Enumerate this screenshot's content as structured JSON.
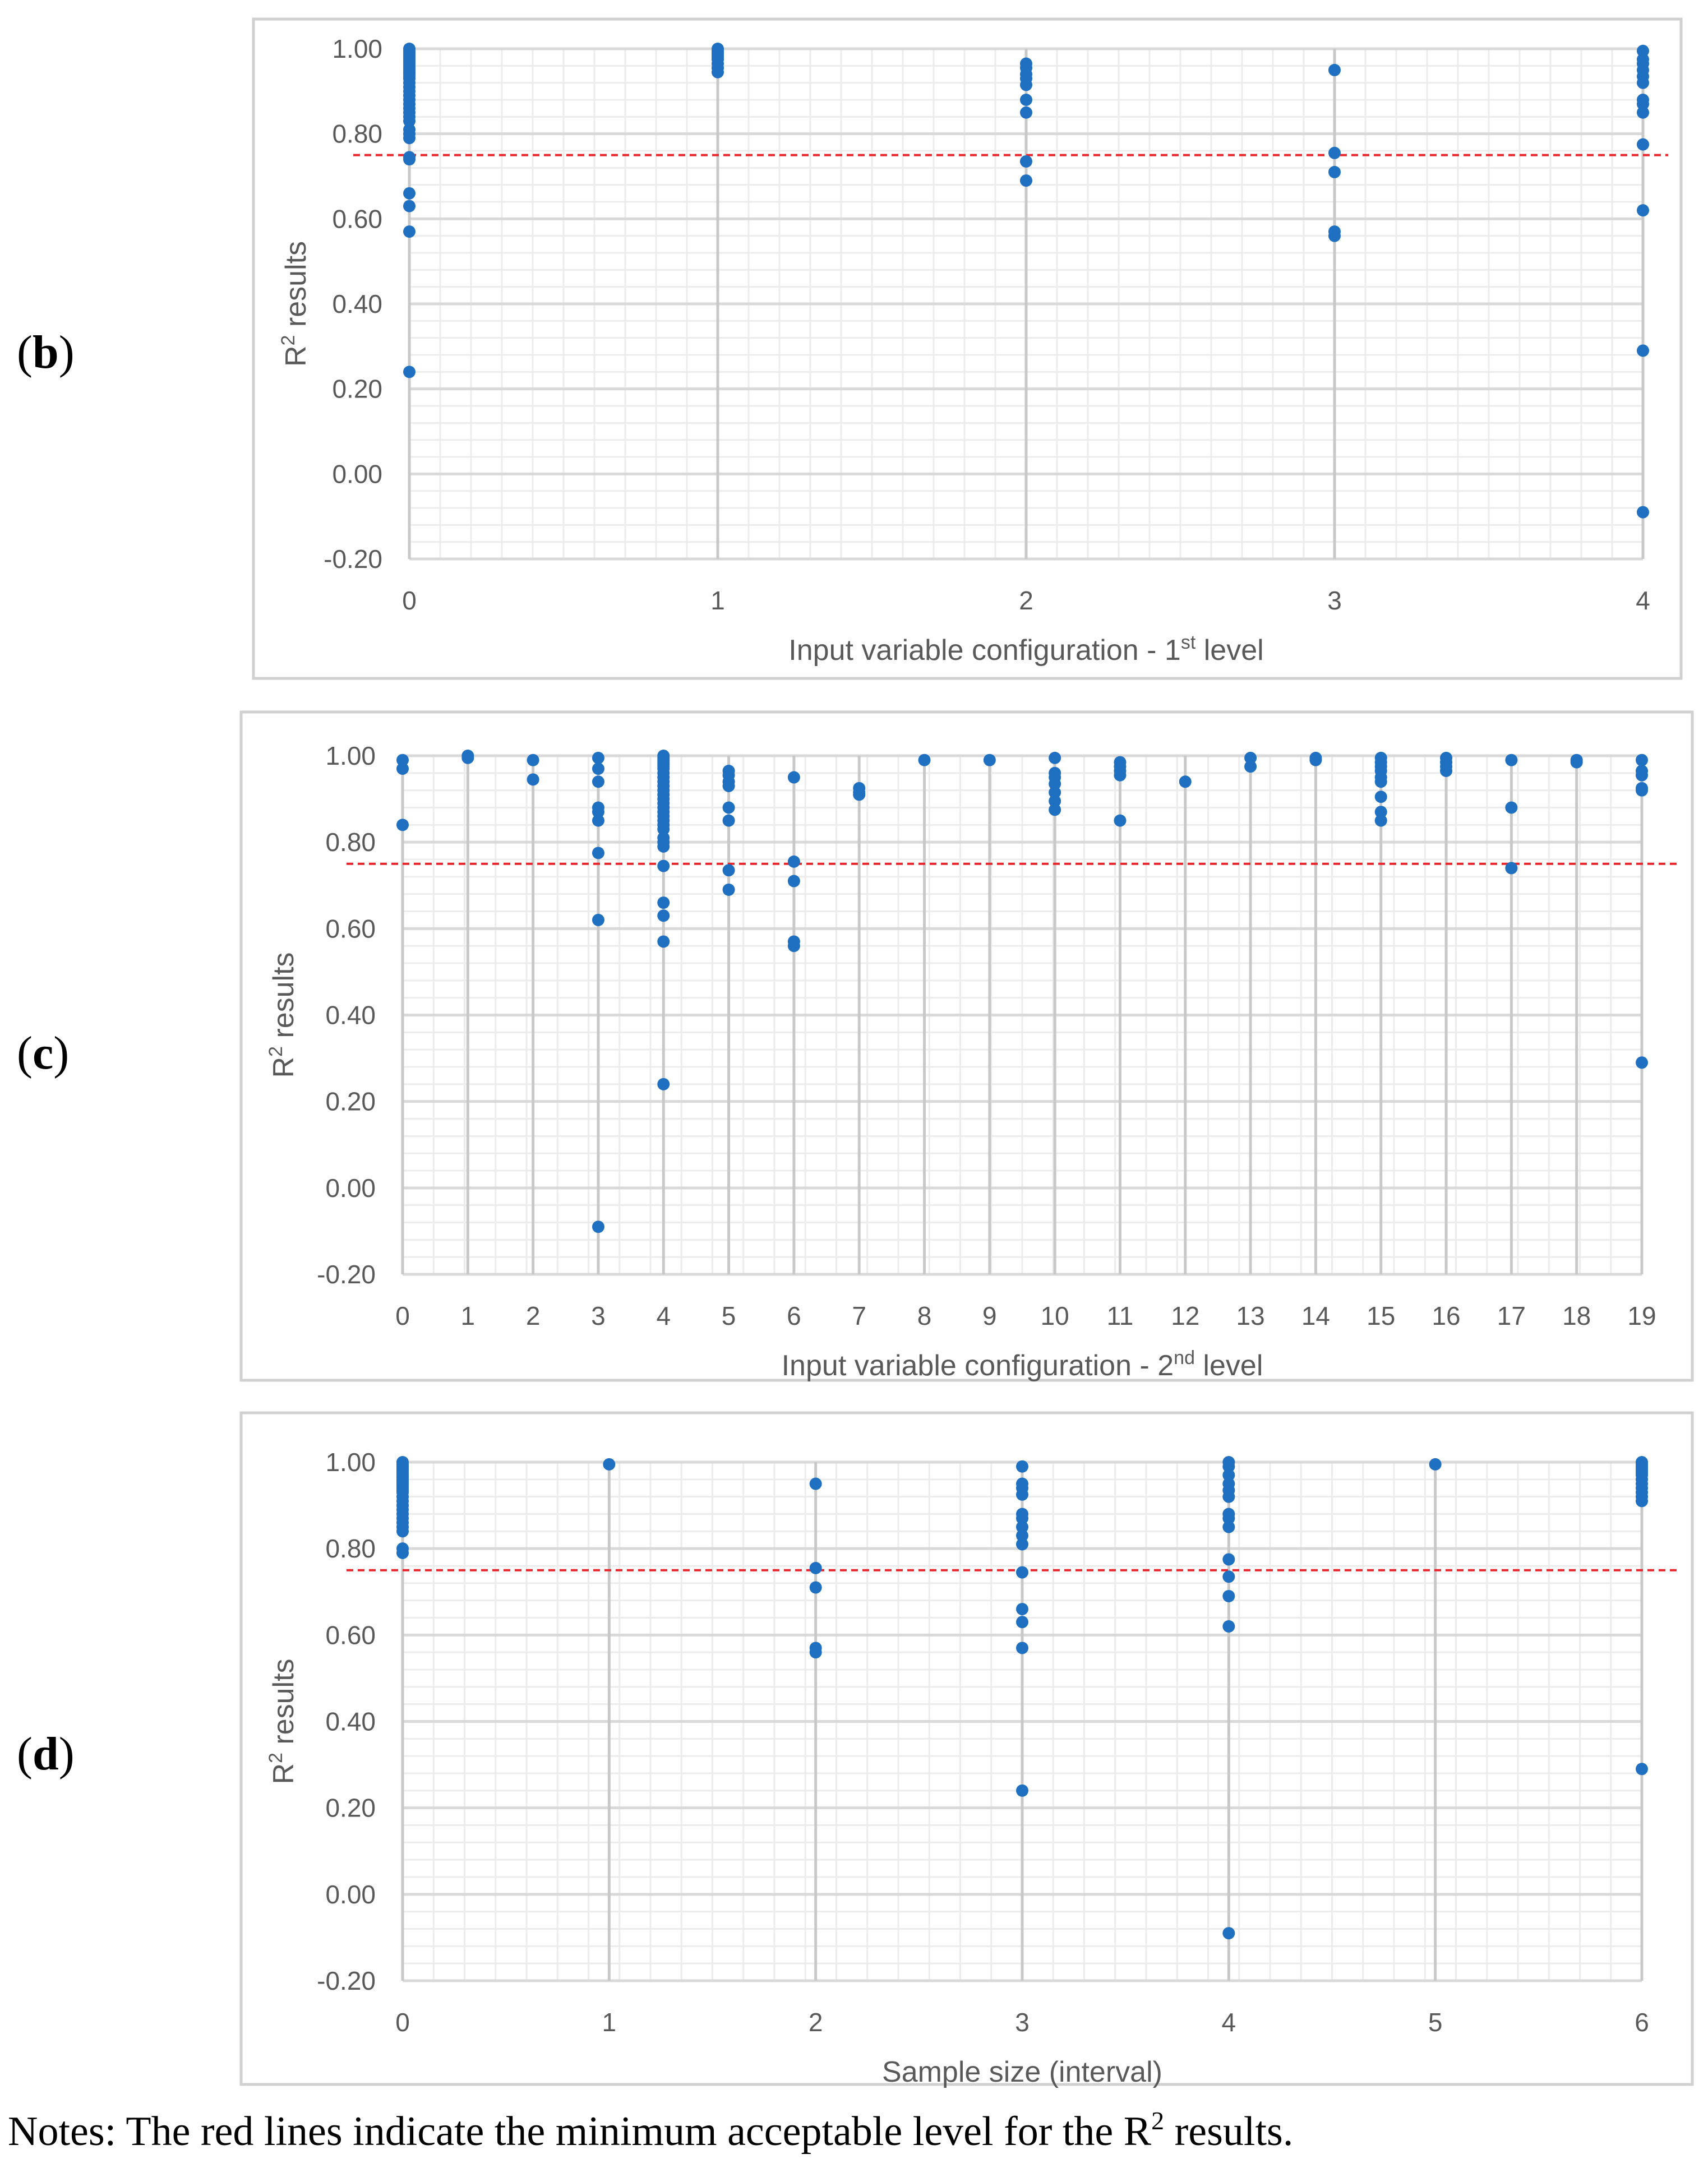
{
  "colors": {
    "point": "#1f70c1",
    "threshold": "#e8252a",
    "major_grid": "#d9d9d9",
    "minor_grid": "#ececec",
    "xcat_line": "#c8c8c8"
  },
  "chart_data": [
    {
      "panel_label": "b",
      "type": "scatter",
      "xlabel": "Input variable configuration - 1",
      "xlabel_sup": "st",
      "xlabel_tail": " level",
      "ylabel": "R",
      "ylabel_sup": "2",
      "ylabel_tail": " results",
      "ylim": [
        -0.2,
        1.0
      ],
      "yticks": [
        "-0.20",
        "0.00",
        "0.20",
        "0.40",
        "0.60",
        "0.80",
        "1.00"
      ],
      "xticks": [
        "0",
        "1",
        "2",
        "3",
        "4"
      ],
      "threshold": 0.75,
      "points": [
        {
          "x": 0,
          "y": [
            1.0,
            0.995,
            0.99,
            0.985,
            0.98,
            0.975,
            0.97,
            0.965,
            0.96,
            0.955,
            0.95,
            0.945,
            0.94,
            0.935,
            0.93,
            0.92,
            0.91,
            0.9,
            0.89,
            0.88,
            0.87,
            0.86,
            0.85,
            0.84,
            0.83,
            0.81,
            0.8,
            0.79,
            0.745,
            0.74,
            0.66,
            0.63,
            0.57,
            0.24
          ]
        },
        {
          "x": 1,
          "y": [
            1.0,
            0.995,
            0.99,
            0.985,
            0.98,
            0.975,
            0.965,
            0.955,
            0.945
          ]
        },
        {
          "x": 2,
          "y": [
            0.965,
            0.955,
            0.94,
            0.93,
            0.915,
            0.88,
            0.85,
            0.735,
            0.69
          ]
        },
        {
          "x": 3,
          "y": [
            0.95,
            0.755,
            0.71,
            0.57,
            0.56
          ]
        },
        {
          "x": 4,
          "y": [
            0.995,
            0.975,
            0.965,
            0.95,
            0.935,
            0.92,
            0.88,
            0.87,
            0.85,
            0.775,
            0.62,
            0.29,
            -0.09
          ]
        }
      ]
    },
    {
      "panel_label": "c",
      "type": "scatter",
      "xlabel": "Input variable configuration - 2",
      "xlabel_sup": "nd",
      "xlabel_tail": " level",
      "ylabel": "R",
      "ylabel_sup": "2",
      "ylabel_tail": " results",
      "ylim": [
        -0.2,
        1.0
      ],
      "yticks": [
        "-0.20",
        "0.00",
        "0.20",
        "0.40",
        "0.60",
        "0.80",
        "1.00"
      ],
      "xticks": [
        "0",
        "1",
        "2",
        "3",
        "4",
        "5",
        "6",
        "7",
        "8",
        "9",
        "10",
        "11",
        "12",
        "13",
        "14",
        "15",
        "16",
        "17",
        "18",
        "19"
      ],
      "threshold": 0.75,
      "points": [
        {
          "x": 0,
          "y": [
            0.99,
            0.97,
            0.84
          ]
        },
        {
          "x": 1,
          "y": [
            1.0,
            0.995
          ]
        },
        {
          "x": 2,
          "y": [
            0.99,
            0.945
          ]
        },
        {
          "x": 3,
          "y": [
            0.995,
            0.97,
            0.94,
            0.88,
            0.87,
            0.85,
            0.775,
            0.62,
            -0.09
          ]
        },
        {
          "x": 4,
          "y": [
            1.0,
            0.995,
            0.99,
            0.985,
            0.98,
            0.975,
            0.97,
            0.96,
            0.95,
            0.94,
            0.93,
            0.92,
            0.91,
            0.9,
            0.89,
            0.88,
            0.87,
            0.86,
            0.85,
            0.84,
            0.83,
            0.81,
            0.8,
            0.79,
            0.745,
            0.66,
            0.63,
            0.57,
            0.24
          ]
        },
        {
          "x": 5,
          "y": [
            0.965,
            0.955,
            0.94,
            0.93,
            0.88,
            0.85,
            0.735,
            0.69
          ]
        },
        {
          "x": 6,
          "y": [
            0.95,
            0.755,
            0.71,
            0.57,
            0.56
          ]
        },
        {
          "x": 7,
          "y": [
            0.925,
            0.915,
            0.91
          ]
        },
        {
          "x": 8,
          "y": [
            0.99
          ]
        },
        {
          "x": 9,
          "y": [
            0.99
          ]
        },
        {
          "x": 10,
          "y": [
            0.995,
            0.96,
            0.95,
            0.935,
            0.915,
            0.895,
            0.875
          ]
        },
        {
          "x": 11,
          "y": [
            0.985,
            0.975,
            0.965,
            0.955,
            0.85
          ]
        },
        {
          "x": 12,
          "y": [
            0.94
          ]
        },
        {
          "x": 13,
          "y": [
            0.995,
            0.975
          ]
        },
        {
          "x": 14,
          "y": [
            0.995,
            0.99
          ]
        },
        {
          "x": 15,
          "y": [
            0.995,
            0.985,
            0.975,
            0.965,
            0.95,
            0.94,
            0.905,
            0.87,
            0.85
          ]
        },
        {
          "x": 16,
          "y": [
            0.995,
            0.985,
            0.975,
            0.965
          ]
        },
        {
          "x": 17,
          "y": [
            0.99,
            0.88,
            0.74
          ]
        },
        {
          "x": 18,
          "y": [
            0.99,
            0.985
          ]
        },
        {
          "x": 19,
          "y": [
            0.99,
            0.965,
            0.955,
            0.925,
            0.92,
            0.29
          ]
        }
      ]
    },
    {
      "panel_label": "d",
      "type": "scatter",
      "xlabel": "Sample size (interval)",
      "xlabel_sup": "",
      "xlabel_tail": "",
      "ylabel": "R",
      "ylabel_sup": "2",
      "ylabel_tail": " results",
      "ylim": [
        -0.2,
        1.0
      ],
      "yticks": [
        "-0.20",
        "0.00",
        "0.20",
        "0.40",
        "0.60",
        "0.80",
        "1.00"
      ],
      "xticks": [
        "0",
        "1",
        "2",
        "3",
        "4",
        "5",
        "6"
      ],
      "threshold": 0.75,
      "points": [
        {
          "x": 0,
          "y": [
            1.0,
            0.995,
            0.99,
            0.985,
            0.98,
            0.975,
            0.97,
            0.965,
            0.96,
            0.955,
            0.95,
            0.945,
            0.94,
            0.935,
            0.93,
            0.92,
            0.91,
            0.9,
            0.89,
            0.88,
            0.87,
            0.86,
            0.85,
            0.84,
            0.8,
            0.79
          ]
        },
        {
          "x": 1,
          "y": [
            0.995
          ]
        },
        {
          "x": 2,
          "y": [
            0.95,
            0.755,
            0.71,
            0.57,
            0.56
          ]
        },
        {
          "x": 3,
          "y": [
            0.99,
            0.95,
            0.94,
            0.925,
            0.88,
            0.87,
            0.85,
            0.83,
            0.81,
            0.745,
            0.66,
            0.63,
            0.57,
            0.24
          ]
        },
        {
          "x": 4,
          "y": [
            1.0,
            0.99,
            0.97,
            0.95,
            0.935,
            0.92,
            0.88,
            0.87,
            0.85,
            0.775,
            0.735,
            0.69,
            0.62,
            -0.09
          ]
        },
        {
          "x": 5,
          "y": [
            0.995
          ]
        },
        {
          "x": 6,
          "y": [
            1.0,
            0.995,
            0.99,
            0.985,
            0.98,
            0.975,
            0.97,
            0.96,
            0.95,
            0.94,
            0.93,
            0.92,
            0.91,
            0.29
          ]
        }
      ]
    }
  ],
  "notes": {
    "text_before": "Notes: The red lines indicate the minimum acceptable level for the R",
    "sup": "2",
    "text_after": " results."
  }
}
